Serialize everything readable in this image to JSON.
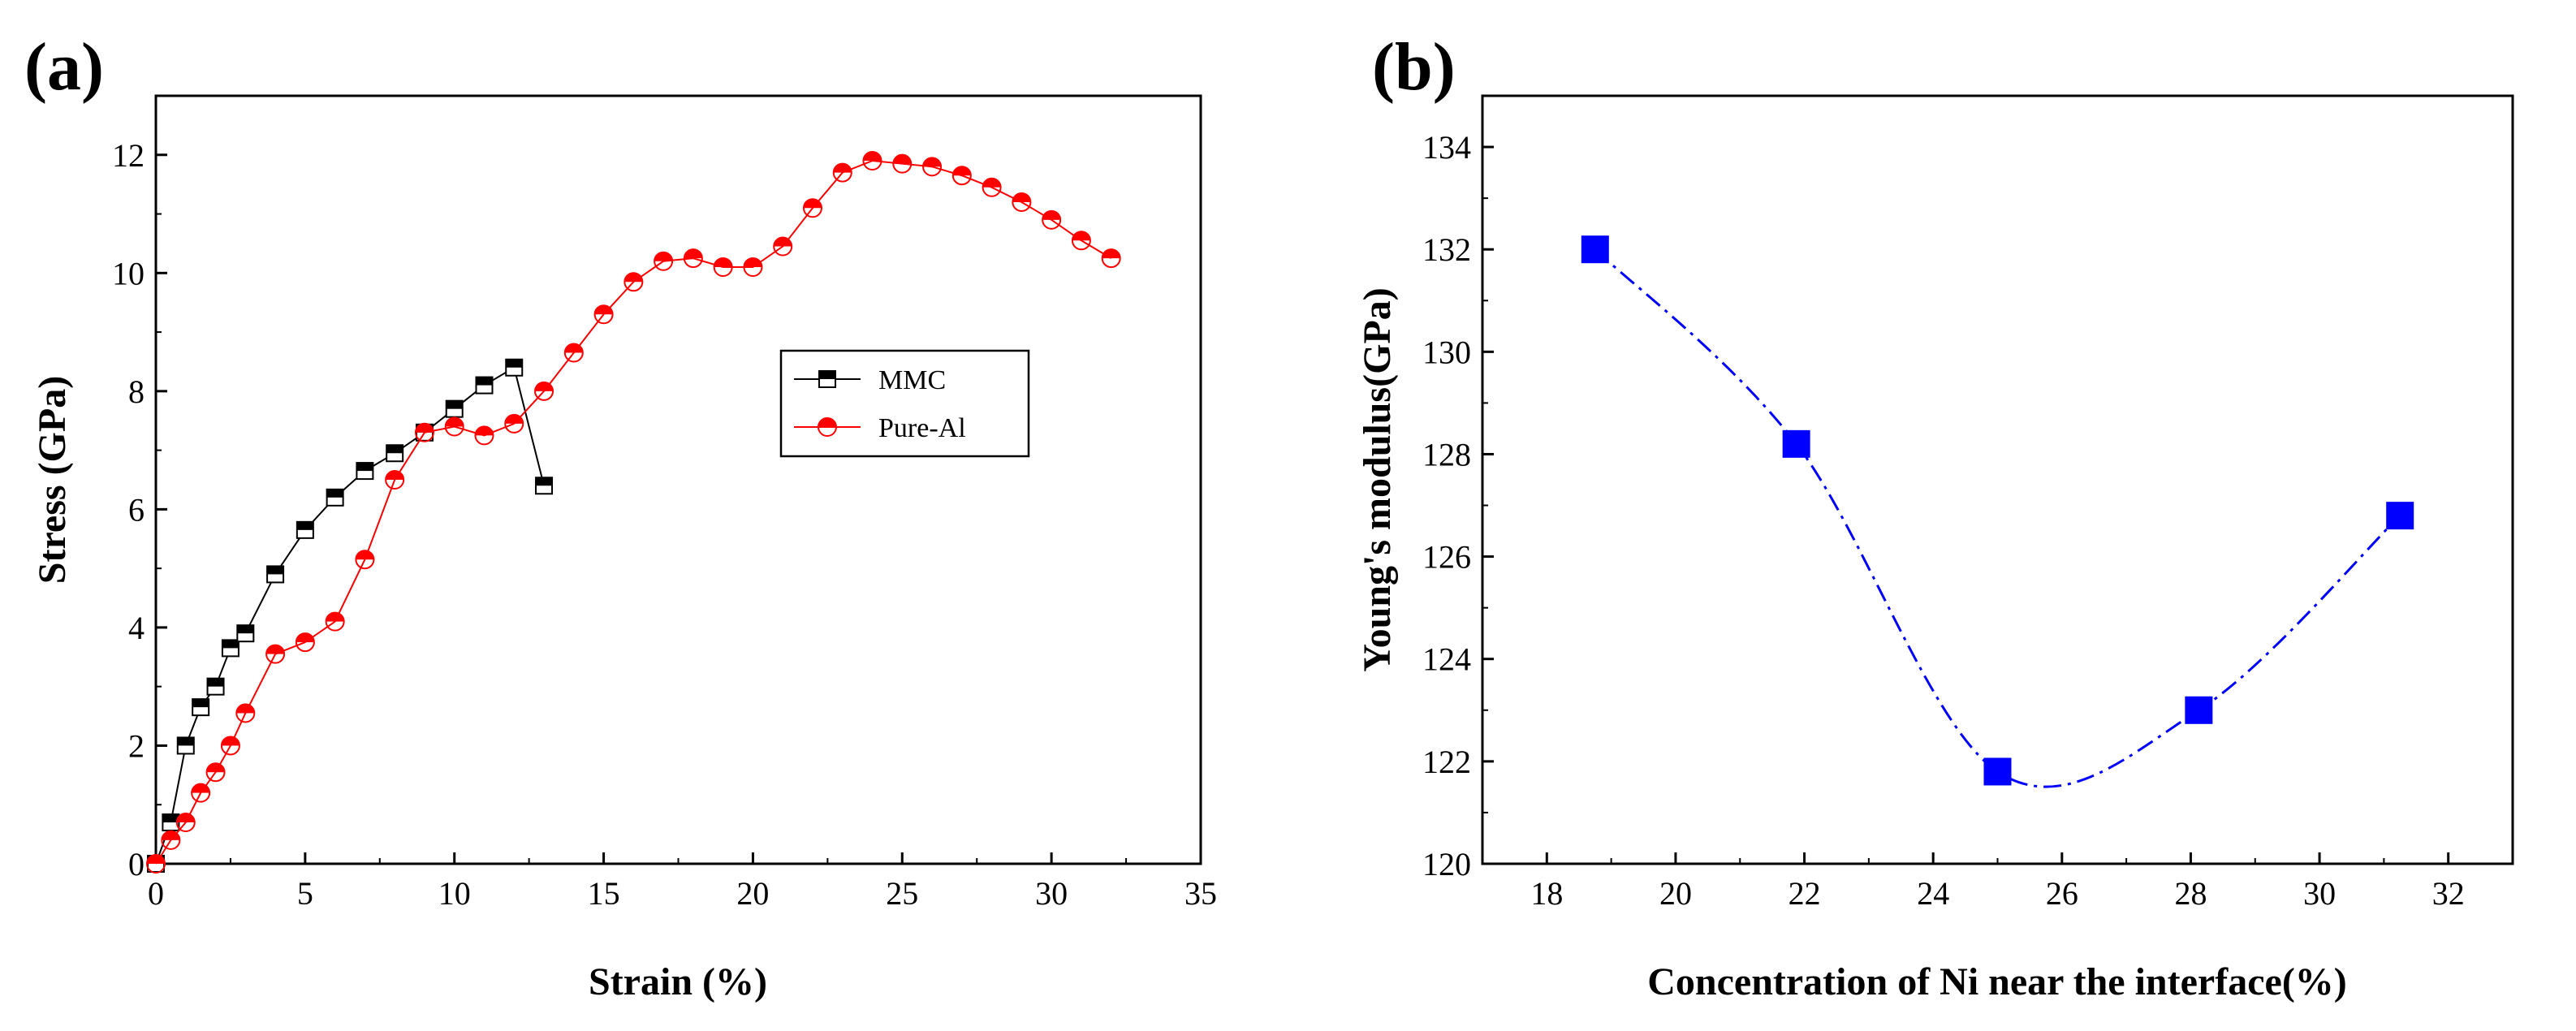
{
  "chart_data": [
    {
      "type": "line",
      "panel_label": "(a)",
      "title": "",
      "xlabel": "Strain (%)",
      "ylabel": "Stress (GPa)",
      "xlim": [
        0,
        35
      ],
      "ylim": [
        0,
        13
      ],
      "xticks": [
        0,
        5,
        10,
        15,
        20,
        25,
        30,
        35
      ],
      "yticks": [
        0,
        2,
        4,
        6,
        8,
        10,
        12
      ],
      "legend_position": "right-middle",
      "series": [
        {
          "name": "MMC",
          "color": "#000000",
          "marker": "square-half",
          "x": [
            0,
            0.5,
            1,
            1.5,
            2,
            2.5,
            3,
            4,
            5,
            6,
            7,
            8,
            9,
            10,
            11,
            12,
            13
          ],
          "y": [
            0,
            0.7,
            2.0,
            2.65,
            3.0,
            3.65,
            3.9,
            4.9,
            5.65,
            6.2,
            6.65,
            6.95,
            7.3,
            7.7,
            8.1,
            8.4,
            6.4
          ]
        },
        {
          "name": "Pure-Al",
          "color": "#ff0000",
          "marker": "circle-half",
          "x": [
            0,
            0.5,
            1,
            1.5,
            2,
            2.5,
            3,
            4,
            5,
            6,
            7,
            8,
            9,
            10,
            11,
            12,
            13,
            14,
            15,
            16,
            17,
            18,
            19,
            20,
            21,
            22,
            23,
            24,
            25,
            26,
            27,
            28,
            29,
            30,
            31,
            32
          ],
          "y": [
            0,
            0.4,
            0.7,
            1.2,
            1.55,
            2.0,
            2.55,
            3.55,
            3.75,
            4.1,
            5.15,
            6.5,
            7.3,
            7.4,
            7.25,
            7.45,
            8.0,
            8.65,
            9.3,
            9.85,
            10.2,
            10.25,
            10.1,
            10.1,
            10.45,
            11.1,
            11.7,
            11.9,
            11.85,
            11.8,
            11.65,
            11.45,
            11.2,
            10.9,
            10.55,
            10.25
          ]
        }
      ]
    },
    {
      "type": "scatter",
      "panel_label": "(b)",
      "title": "",
      "xlabel": "Concentration of Ni near the interface(%)",
      "ylabel": "Young's modulus(GPa)",
      "xlim": [
        17,
        33
      ],
      "ylim": [
        120,
        135
      ],
      "xticks": [
        18,
        20,
        22,
        24,
        26,
        28,
        30,
        32
      ],
      "yticks": [
        120,
        122,
        124,
        126,
        128,
        130,
        132,
        134
      ],
      "series": [
        {
          "name": "Young's modulus",
          "color": "#0000ff",
          "marker": "square",
          "line": "dash-dot spline",
          "x": [
            18.75,
            21.875,
            25.0,
            28.125,
            31.25
          ],
          "y": [
            132.0,
            128.2,
            121.8,
            123.0,
            126.8
          ]
        }
      ]
    }
  ]
}
